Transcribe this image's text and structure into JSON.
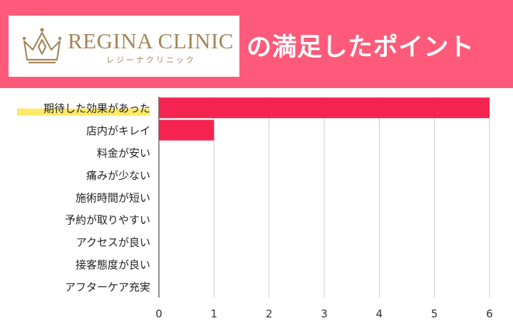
{
  "banner": {
    "brand": "REGINA CLINIC",
    "brand_sub": "レジーナクリニック",
    "headline": "の満足したポイント",
    "background": "#ff5a7a",
    "logo_icon": "crown-icon"
  },
  "chart_data": {
    "type": "bar",
    "orientation": "horizontal",
    "categories": [
      "期待した効果があった",
      "店内がキレイ",
      "料金が安い",
      "痛みが少ない",
      "施術時間が短い",
      "予約が取りやすい",
      "アクセスが良い",
      "接客態度が良い",
      "アフターケア充実"
    ],
    "values": [
      6,
      1,
      0,
      0,
      0,
      0,
      0,
      0,
      0
    ],
    "xlim": [
      0,
      6
    ],
    "xticks": [
      "0",
      "1",
      "2",
      "3",
      "4",
      "5",
      "6"
    ],
    "grid": true,
    "bar_color": "#f5234f",
    "highlight_category": "期待した効果があった",
    "highlight_color": "#ffe866"
  }
}
